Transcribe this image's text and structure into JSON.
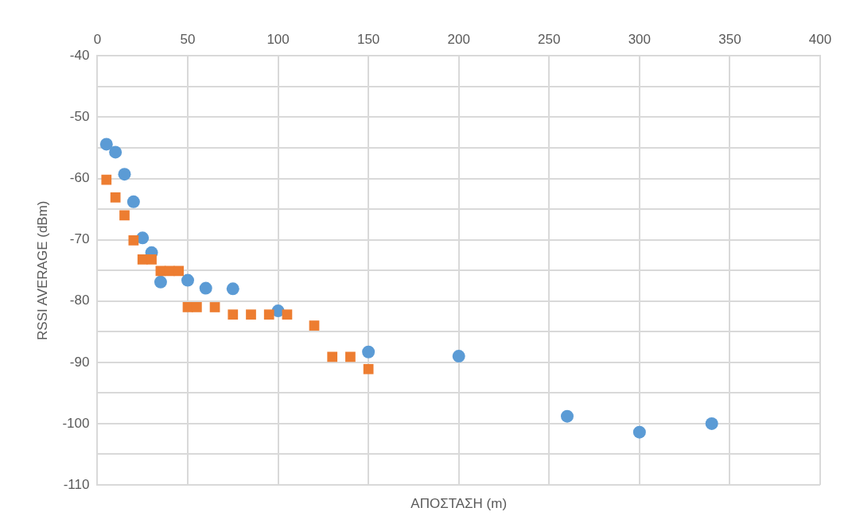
{
  "chart_data": {
    "type": "scatter",
    "xlabel": "ΑΠΟΣΤΑΣΗ (m)",
    "ylabel": "RSSI AVERAGE (dBm)",
    "xlim": [
      0,
      400
    ],
    "xticks": [
      0,
      50,
      100,
      150,
      200,
      250,
      300,
      350,
      400
    ],
    "ylim": [
      -110,
      -40
    ],
    "yticks": [
      -110,
      {
        "value": -105,
        "label": null
      },
      -100,
      {
        "value": -95,
        "label": null
      },
      -90,
      {
        "value": -85,
        "label": null
      },
      -80,
      {
        "value": -75,
        "label": null
      },
      -70,
      {
        "value": -65,
        "label": null
      },
      -60,
      {
        "value": -55,
        "label": null
      },
      -50,
      {
        "value": -45,
        "label": null
      },
      -40
    ],
    "grid": true,
    "legend": false,
    "series": [
      {
        "color": "#5b9bd5",
        "marker": "circle",
        "x": [
          5,
          10,
          15,
          20,
          25,
          30,
          35,
          40,
          50,
          60,
          75,
          100,
          150,
          200,
          260,
          300,
          340
        ],
        "values": [
          -54.4,
          -55.7,
          -59.3,
          -63.8,
          -69.7,
          -72.1,
          -76.9,
          null,
          -76.6,
          -77.9,
          -78,
          -81.6,
          -88.3,
          -89,
          -98.8,
          -101.4,
          -100
        ]
      },
      {
        "color": "#ed7d31",
        "marker": "square",
        "x": [
          5,
          10,
          15,
          20,
          25,
          30,
          35,
          40,
          45,
          50,
          55,
          65,
          75,
          85,
          95,
          105,
          120,
          130,
          140,
          150
        ],
        "values": [
          -60.2,
          -63.1,
          -66,
          -70.1,
          -73.2,
          -73.2,
          -75.1,
          -75.1,
          -75.1,
          -81,
          -81,
          -81,
          -82.2,
          -82.2,
          -82.2,
          -82.2,
          -84,
          -89.1,
          -89.1,
          -91.1
        ]
      }
    ]
  }
}
